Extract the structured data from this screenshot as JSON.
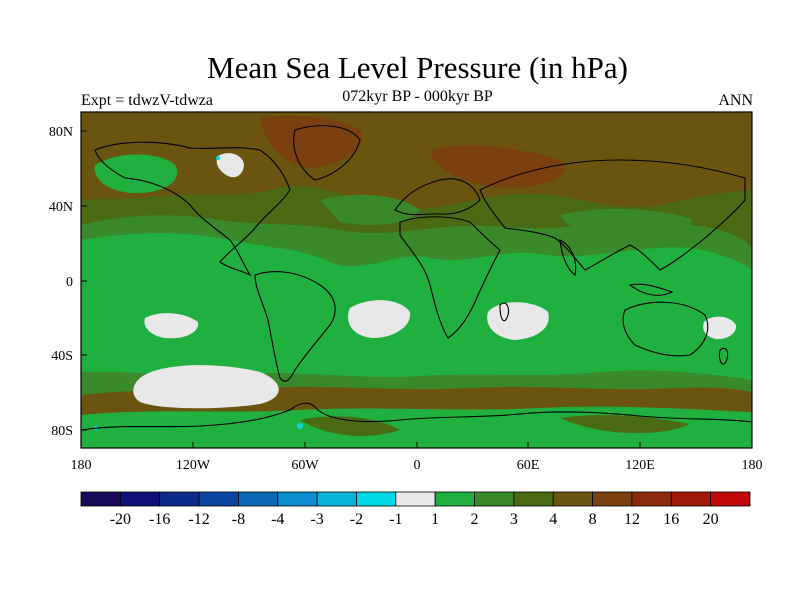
{
  "title": "Mean Sea Level Pressure (in hPa)",
  "subtitle": "072kyr BP - 000kyr BP",
  "left_label": "Expt = tdwzV-tdwza",
  "right_label": "ANN",
  "axes": {
    "lat_ticks": [
      "80N",
      "40N",
      "0",
      "40S",
      "80S"
    ],
    "lon_ticks": [
      "180",
      "120W",
      "60W",
      "0",
      "60E",
      "120E",
      "180"
    ]
  },
  "colorbar": {
    "colors": [
      "#1a0a5a",
      "#0e0f78",
      "#0c2a8c",
      "#0a44a0",
      "#0a68b4",
      "#0a8ed0",
      "#0ab4d8",
      "#00d8e6",
      "#e8e8e8",
      "#20b040",
      "#3a8a2c",
      "#4a6a14",
      "#6a5410",
      "#7a4010",
      "#8a2a0a",
      "#a01808",
      "#c00808"
    ],
    "labels": [
      "-20",
      "-16",
      "-12",
      "-8",
      "-4",
      "-3",
      "-2",
      "-1",
      "1",
      "2",
      "3",
      "4",
      "8",
      "12",
      "16",
      "20"
    ]
  },
  "field_colors": {
    "brown": "#6a5410",
    "olive": "#4a6a14",
    "green_dark": "#3a8a2c",
    "green": "#20b040",
    "white": "#e8e8e8",
    "red_brown": "#8a2a0a",
    "cyan": "#00d8e6"
  }
}
